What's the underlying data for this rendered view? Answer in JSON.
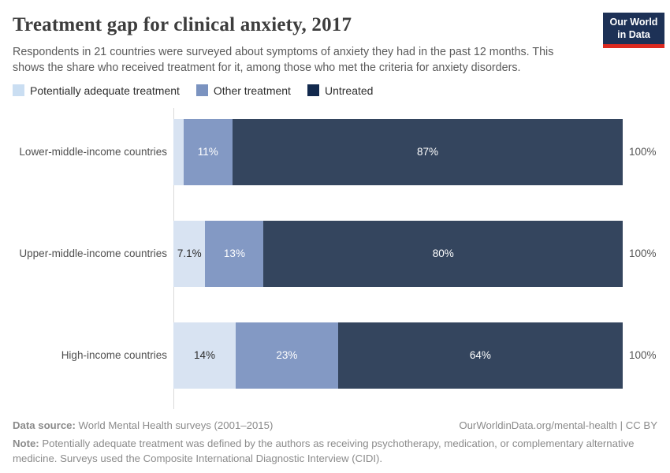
{
  "header": {
    "title": "Treatment gap for clinical anxiety, 2017",
    "subtitle": "Respondents in 21 countries were surveyed about symptoms of anxiety they had in the past 12 months. This shows the share who received treatment for it, among those who met the criteria for anxiety disorders.",
    "logo": {
      "line1": "Our World",
      "line2": "in Data",
      "bg_color": "#1d3156",
      "accent_color": "#dc2a20"
    }
  },
  "legend": {
    "items": [
      {
        "label": "Potentially adequate treatment",
        "color": "#cadef2"
      },
      {
        "label": "Other treatment",
        "color": "#7b93c0"
      },
      {
        "label": "Untreated",
        "color": "#12294d"
      }
    ]
  },
  "chart_data": {
    "type": "bar",
    "variant": "horizontal-stacked",
    "title": "Treatment gap for clinical anxiety, 2017",
    "unit": "%",
    "xlim": [
      0,
      100
    ],
    "grid": "off",
    "legend_position": "top",
    "categories": [
      "Lower-middle-income countries",
      "Upper-middle-income countries",
      "High-income countries"
    ],
    "series": [
      {
        "name": "Potentially adequate treatment",
        "color": "#d8e3f2",
        "text_color": "#2d2d2d",
        "values": [
          2.2,
          7.1,
          14
        ],
        "labels": [
          "",
          "7.1%",
          "14%"
        ]
      },
      {
        "name": "Other treatment",
        "color": "#8399c4",
        "text_color": "#ffffff",
        "values": [
          11,
          13,
          23
        ],
        "labels": [
          "11%",
          "13%",
          "23%"
        ]
      },
      {
        "name": "Untreated",
        "color": "#34455e",
        "text_color": "#ffffff",
        "values": [
          87,
          80,
          64
        ],
        "labels": [
          "87%",
          "80%",
          "64%"
        ]
      }
    ],
    "row_total_label": "100%"
  },
  "footer": {
    "source_label": "Data source:",
    "source_text": " World Mental Health surveys (2001–2015)",
    "credit": "OurWorldinData.org/mental-health | CC BY",
    "note_label": "Note:",
    "note_text": " Potentially adequate treatment was defined by the authors as receiving psychotherapy, medication, or complementary alternative medicine. Surveys used the Composite International Diagnostic Interview (CIDI)."
  }
}
